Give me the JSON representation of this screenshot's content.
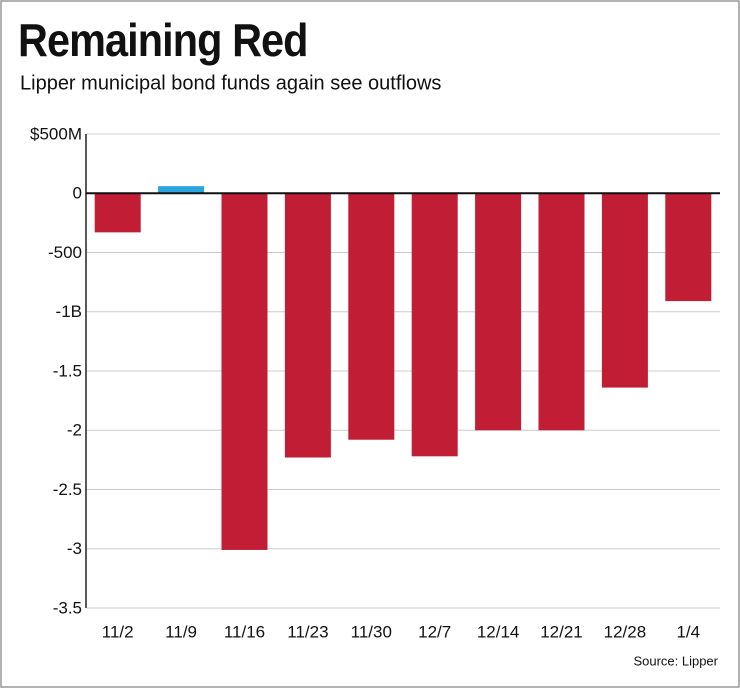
{
  "chart_data": {
    "type": "bar",
    "title": "Remaining Red",
    "subtitle": "Lipper municipal bond funds again see outflows",
    "source": "Source: Lipper",
    "categories": [
      "11/2",
      "11/9",
      "11/16",
      "11/23",
      "11/30",
      "12/7",
      "12/14",
      "12/21",
      "12/28",
      "1/4"
    ],
    "values": [
      -330,
      60,
      -3010,
      -2230,
      -2080,
      -2220,
      -2000,
      -2000,
      -1640,
      -910
    ],
    "colors": [
      "#c11d35",
      "#2aa6de",
      "#c11d35",
      "#c11d35",
      "#c11d35",
      "#c11d35",
      "#c11d35",
      "#c11d35",
      "#c11d35",
      "#c11d35"
    ],
    "ylim": [
      -3500,
      500
    ],
    "yticks": [
      {
        "value": 500,
        "label": "$500M"
      },
      0,
      -500,
      {
        "value": -1000,
        "label": "-1B"
      },
      {
        "value": -1500,
        "label": "-1.5"
      },
      {
        "value": -2000,
        "label": "-2"
      },
      {
        "value": -2500,
        "label": "-2.5"
      },
      {
        "value": -3000,
        "label": "-3"
      },
      {
        "value": -3500,
        "label": "-3.5"
      }
    ],
    "grid": true
  }
}
